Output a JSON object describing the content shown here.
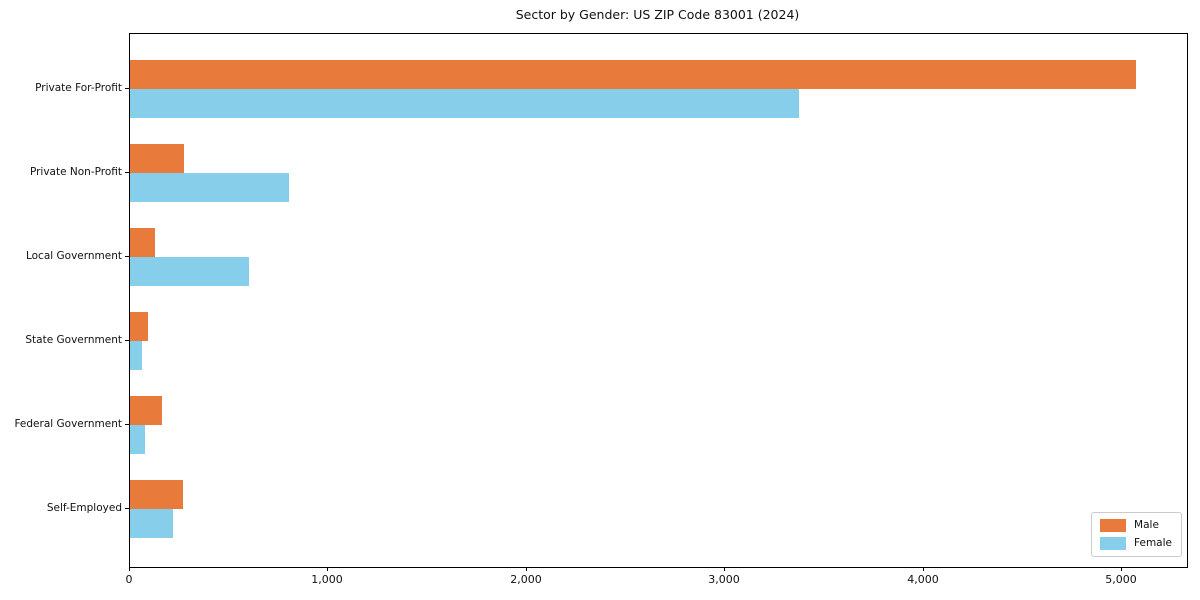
{
  "chart_data": {
    "type": "bar",
    "orientation": "horizontal",
    "title": "Sector by Gender: US ZIP Code 83001 (2024)",
    "categories": [
      "Private For-Profit",
      "Private Non-Profit",
      "Local Government",
      "State Government",
      "Federal Government",
      "Self-Employed"
    ],
    "series": [
      {
        "name": "Male",
        "color": "#e87a3c",
        "values": [
          5070,
          270,
          125,
          90,
          160,
          265
        ]
      },
      {
        "name": "Female",
        "color": "#87ceeb",
        "values": [
          3370,
          800,
          600,
          60,
          75,
          215
        ]
      }
    ],
    "xlabel": "",
    "ylabel": "",
    "xlim": [
      0,
      5325
    ],
    "xticks": [
      0,
      1000,
      2000,
      3000,
      4000,
      5000
    ],
    "xtick_labels": [
      "0",
      "1,000",
      "2,000",
      "3,000",
      "4,000",
      "5,000"
    ],
    "grid": false,
    "legend": {
      "position": "lower right",
      "entries": [
        "Male",
        "Female"
      ]
    }
  }
}
